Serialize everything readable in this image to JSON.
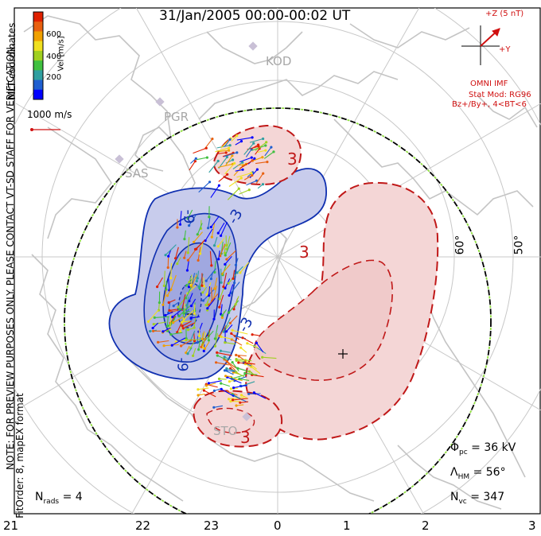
{
  "title": "31/Jan/2005 00:00-00:02 UT",
  "side_note": "NOTE: FOR PREVIEW PURPOSES ONLY. PLEASE CONTACT VT-SD STAFF FOR VERIFICATION.",
  "coord_label": "MLT coordinates",
  "fit_label": "FitOrder: 8, mapEX format",
  "colorbar": {
    "title": "Vel [m/s]",
    "tick_labels": [
      "200",
      "400",
      "600"
    ],
    "colors": [
      "#0000ff",
      "#1f5fd0",
      "#2f9fa0",
      "#40c040",
      "#a0d020",
      "#f0e020",
      "#f0a000",
      "#e86010",
      "#e02000"
    ]
  },
  "scale_vector": {
    "label": "1000 m/s"
  },
  "imf": {
    "bz_label": "+Z (5 nT)",
    "by_label": "+Y",
    "source": "OMNI IMF",
    "model_line1": "Stat Mod: RG96",
    "model_line2": "Bz+/By+, 4<BT<6",
    "color": "#d01010"
  },
  "latitude_labels": [
    "60°",
    "50°"
  ],
  "stations": [
    "KOD",
    "PGR",
    "SAS",
    "STO"
  ],
  "contour_labels": [
    "-3",
    "-3",
    "-9",
    "-9",
    "3",
    "3"
  ],
  "stats": {
    "phi_pc": {
      "symbol": "Φ",
      "sub": "pc",
      "value": "= 36 kV"
    },
    "lambda_hm": {
      "symbol": "Λ",
      "sub": "HM",
      "value": "= 56°"
    },
    "n_vc": {
      "symbol": "N",
      "sub": "vc",
      "value": "= 347"
    },
    "n_rads": {
      "symbol": "N",
      "sub": "rads",
      "value": "= 4"
    }
  },
  "mlt_axis": [
    "21",
    "22",
    "23",
    "0",
    "1",
    "2",
    "3"
  ],
  "colors": {
    "negative_fill": "#c8ccec",
    "negative_line": "#1030b0",
    "positive_fill": "#f4d6d6",
    "positive_line": "#c01818",
    "coast": "#c4c4c4",
    "grid": "#c8c8c8",
    "hmb": "#000000",
    "hmb_dash": "#90e040"
  }
}
